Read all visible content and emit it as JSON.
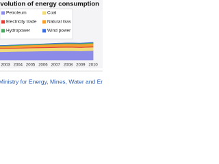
{
  "chart_data": {
    "type": "stacked_area",
    "title": "Evolution of energy consumption",
    "source": "Ministry for Energy, Mines, Water and Environment",
    "categories": [
      null,
      "2003",
      "2004",
      "2005",
      "2006",
      "2007",
      "2008",
      "2009",
      "2010"
    ],
    "series": [
      {
        "name": "Petroleum",
        "color": "#8c8ce8",
        "values": [
          15.5,
          15.8,
          16.2,
          16.6,
          17,
          17.3,
          17.6,
          17.2,
          17.8
        ]
      },
      {
        "name": "Coal",
        "color": "#f0dc78",
        "values": [
          5.5,
          5.6,
          5.8,
          6,
          6.2,
          6.4,
          6.5,
          6.4,
          6.6
        ]
      },
      {
        "name": "Electricity trade",
        "color": "#e0403c",
        "values": [
          1.5,
          1.5,
          1.6,
          1.6,
          1.5,
          1.6,
          1.6,
          1.5,
          1.6
        ]
      },
      {
        "name": "Natural Gas",
        "color": "#f5a030",
        "values": [
          3.5,
          3.6,
          3.8,
          4,
          4.3,
          4.6,
          4.9,
          5.1,
          5.4
        ]
      },
      {
        "name": "Hydropower",
        "color": "#4aa860",
        "values": [
          1.2,
          1.2,
          1.3,
          1.3,
          1.3,
          1.4,
          1.4,
          1.4,
          1.5
        ]
      },
      {
        "name": "Wind power",
        "color": "#3c6ee0",
        "values": [
          0.1,
          0.1,
          0.1,
          0.2,
          0.2,
          0.3,
          0.3,
          0.4,
          0.5
        ]
      }
    ],
    "ylim": [
      0,
      100
    ]
  }
}
